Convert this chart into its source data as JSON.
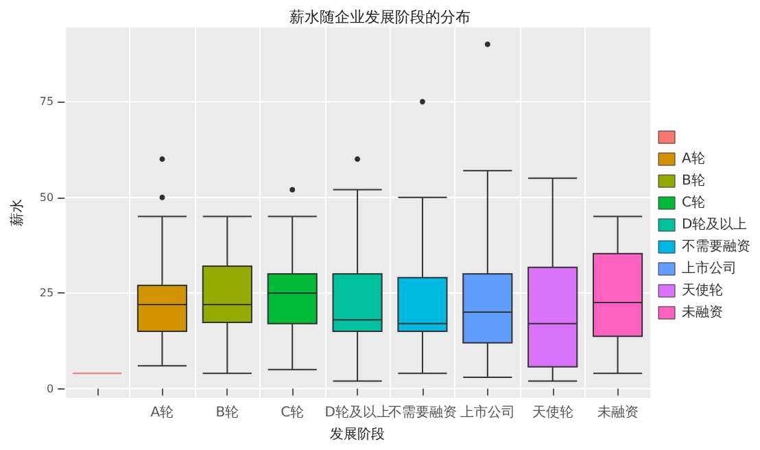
{
  "chart_data": {
    "type": "box",
    "title": "薪水随企业发展阶段的分布",
    "xlabel": "发展阶段",
    "ylabel": "薪水",
    "categories": [
      null,
      "A轮",
      "B轮",
      "C轮",
      "D轮及以上",
      "不需要融资",
      "上市公司",
      "天使轮",
      "未融资"
    ],
    "series": [
      {
        "color": "#f8766d",
        "boxes": [
          {
            "low": 4,
            "q1": 4,
            "median": 4,
            "q3": 4,
            "high": 4
          },
          null,
          null,
          null,
          null,
          null,
          null,
          null,
          null
        ]
      },
      {
        "name": "A轮",
        "color": "#d39200",
        "boxes": [
          null,
          {
            "low": 6,
            "q1": 15,
            "median": 22,
            "q3": 27,
            "high": 45,
            "outliers": [
              50,
              60
            ]
          },
          null,
          null,
          null,
          null,
          null,
          null,
          null
        ]
      },
      {
        "name": "B轮",
        "color": "#93aa00",
        "boxes": [
          null,
          null,
          {
            "low": 4,
            "q1": 17.3,
            "median": 22,
            "q3": 32,
            "high": 45
          },
          null,
          null,
          null,
          null,
          null,
          null
        ]
      },
      {
        "name": "C轮",
        "color": "#00ba38",
        "boxes": [
          null,
          null,
          null,
          {
            "low": 5,
            "q1": 17,
            "median": 25,
            "q3": 30,
            "high": 45,
            "outliers": [
              52
            ]
          },
          null,
          null,
          null,
          null,
          null
        ]
      },
      {
        "name": "D轮及以上",
        "color": "#00c19f",
        "boxes": [
          null,
          null,
          null,
          null,
          {
            "low": 2,
            "q1": 15,
            "median": 18,
            "q3": 30,
            "high": 52,
            "outliers": [
              60
            ]
          },
          null,
          null,
          null,
          null
        ]
      },
      {
        "name": "不需要融资",
        "color": "#00b9e3",
        "boxes": [
          null,
          null,
          null,
          null,
          null,
          {
            "low": 4,
            "q1": 15,
            "median": 17,
            "q3": 29,
            "high": 50,
            "outliers": [
              75
            ]
          },
          null,
          null,
          null
        ]
      },
      {
        "name": "上市公司",
        "color": "#619cff",
        "boxes": [
          null,
          null,
          null,
          null,
          null,
          null,
          {
            "low": 3,
            "q1": 12,
            "median": 20,
            "q3": 30,
            "high": 57,
            "outliers": [
              90
            ]
          },
          null,
          null
        ]
      },
      {
        "name": "天使轮",
        "color": "#db72fb",
        "boxes": [
          null,
          null,
          null,
          null,
          null,
          null,
          null,
          {
            "low": 2,
            "q1": 5.7,
            "median": 17,
            "q3": 31.7,
            "high": 55
          },
          null
        ]
      },
      {
        "name": "未融资",
        "color": "#ff61c3",
        "boxes": [
          null,
          null,
          null,
          null,
          null,
          null,
          null,
          null,
          {
            "low": 4,
            "q1": 13.7,
            "median": 22.5,
            "q3": 35.3,
            "high": 45
          }
        ]
      }
    ],
    "ylim": [
      -2.4,
      94.4
    ],
    "yticks": [
      0,
      25,
      50,
      75
    ],
    "grid": true,
    "legend": "right"
  }
}
